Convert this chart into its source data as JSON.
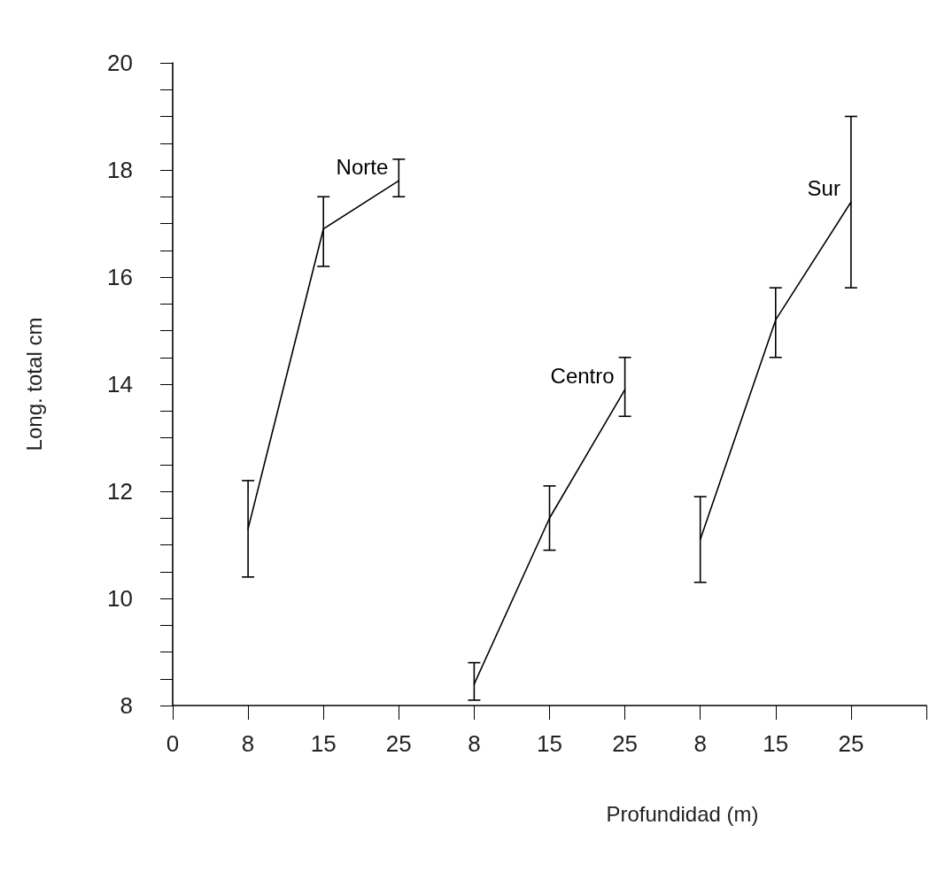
{
  "chart_data": {
    "type": "line",
    "xlabel": "Profundidad (m)",
    "ylabel": "Long. total cm",
    "categories": [
      "0",
      "8",
      "15",
      "25",
      "8",
      "15",
      "25",
      "8",
      "15",
      "25",
      null
    ],
    "ylim": [
      8,
      20
    ],
    "yticks": [
      8,
      {
        "value": 8.5,
        "label": null
      },
      {
        "value": 9,
        "label": null
      },
      {
        "value": 9.5,
        "label": null
      },
      10,
      {
        "value": 10.5,
        "label": null
      },
      {
        "value": 11,
        "label": null
      },
      {
        "value": 11.5,
        "label": null
      },
      12,
      {
        "value": 12.5,
        "label": null
      },
      {
        "value": 13,
        "label": null
      },
      {
        "value": 13.5,
        "label": null
      },
      14,
      {
        "value": 14.5,
        "label": null
      },
      {
        "value": 15,
        "label": null
      },
      {
        "value": 15.5,
        "label": null
      },
      16,
      {
        "value": 16.5,
        "label": null
      },
      {
        "value": 17,
        "label": null
      },
      {
        "value": 17.5,
        "label": null
      },
      18,
      {
        "value": 18.5,
        "label": null
      },
      {
        "value": 19,
        "label": null
      },
      {
        "value": 19.5,
        "label": null
      },
      20
    ],
    "series": [
      {
        "name": "Norte",
        "color": "#000000",
        "values": [
          null,
          11.3,
          16.9,
          17.8,
          null,
          null,
          null,
          null,
          null,
          null,
          null
        ],
        "errors": [
          null,
          [
            10.4,
            12.2
          ],
          [
            16.2,
            17.5
          ],
          [
            17.5,
            18.2
          ],
          null,
          null,
          null,
          null,
          null,
          null,
          null
        ]
      },
      {
        "name": "Centro",
        "color": "#000000",
        "values": [
          null,
          null,
          null,
          null,
          8.4,
          11.5,
          13.9,
          null,
          null,
          null,
          null
        ],
        "errors": [
          null,
          null,
          null,
          null,
          [
            8.1,
            8.8
          ],
          [
            10.9,
            12.1
          ],
          [
            13.4,
            14.5
          ],
          null,
          null,
          null,
          null
        ]
      },
      {
        "name": "Sur",
        "color": "#000000",
        "values": [
          null,
          null,
          null,
          null,
          null,
          null,
          null,
          11.1,
          15.2,
          17.4,
          null
        ],
        "errors": [
          null,
          null,
          null,
          null,
          null,
          null,
          null,
          [
            10.3,
            11.9
          ],
          [
            14.5,
            15.8
          ],
          [
            15.8,
            19.0
          ],
          null
        ]
      }
    ]
  }
}
